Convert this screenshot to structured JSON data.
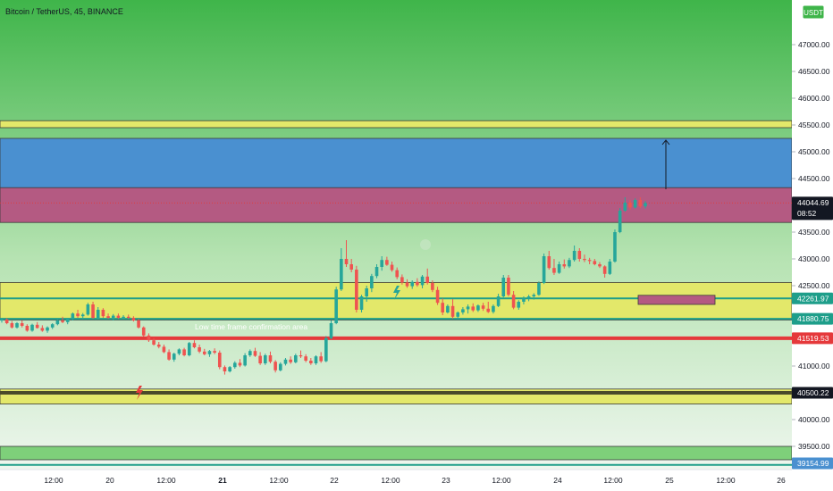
{
  "header": {
    "title": "Bitcoin / TetherUS, 45, BINANCE",
    "currency": "USDT"
  },
  "colors": {
    "bg_top": "#3fb54a",
    "bg_bottom": "#eef6ee",
    "yellow_zone": "#e3e86a",
    "blue_zone": "#4a90d0",
    "pink_zone": "#b45a82",
    "green_zone": "#7ed07a",
    "teal_line": "#1e9e8a",
    "red_line": "#e5393b",
    "dark_line": "#4a4a2a",
    "candle_up": "#26a69a",
    "candle_down": "#ef5350"
  },
  "chart_data": {
    "type": "candlestick",
    "symbol": "BTCUSDT",
    "timeframe": "45",
    "ylim": [
      39050,
      47550
    ],
    "x_ticks": [
      "12:00",
      "20",
      "12:00",
      "21",
      "12:00",
      "22",
      "12:00",
      "23",
      "12:00",
      "24",
      "12:00",
      "25",
      "12:00",
      "26"
    ],
    "y_ticks": [
      "47000.00",
      "46500.00",
      "46000.00",
      "45500.00",
      "45000.00",
      "44500.00",
      "43500.00",
      "43000.00",
      "42500.00",
      "41000.00",
      "40000.00",
      "39500.00"
    ],
    "zones": [
      {
        "kind": "yellow",
        "low": 45450,
        "high": 45580
      },
      {
        "kind": "blue",
        "low": 44300,
        "high": 45250
      },
      {
        "kind": "pink",
        "low": 43680,
        "high": 44330
      },
      {
        "kind": "yellow",
        "low": 41860,
        "high": 42560
      },
      {
        "kind": "yellow",
        "low": 40290,
        "high": 40570
      },
      {
        "kind": "green",
        "low": 39250,
        "high": 39500
      }
    ],
    "lines": [
      {
        "kind": "teal",
        "price": 42261.97
      },
      {
        "kind": "teal",
        "price": 41880.75
      },
      {
        "kind": "red",
        "price": 41519.53
      },
      {
        "kind": "dark",
        "price": 40500.22
      },
      {
        "kind": "teal",
        "price": 39154.99
      }
    ],
    "price_labels": [
      {
        "value": "44044.69",
        "sub": "08:52",
        "kind": "current"
      },
      {
        "value": "42261.97",
        "kind": "teal"
      },
      {
        "value": "41880.75",
        "kind": "teal"
      },
      {
        "value": "41519.53",
        "kind": "red"
      },
      {
        "value": "40500.22",
        "kind": "dark"
      },
      {
        "value": "39154.99",
        "kind": "blue"
      }
    ],
    "annotation": "Low time frame confirmation area",
    "current_price": 44044.69,
    "arrow_target": 45250,
    "target_box": {
      "low": 42150,
      "high": 42320
    },
    "candles": [
      [
        41850,
        41900,
        41810,
        41870
      ],
      [
        41870,
        41890,
        41780,
        41800
      ],
      [
        41800,
        41840,
        41700,
        41720
      ],
      [
        41720,
        41820,
        41700,
        41800
      ],
      [
        41800,
        41850,
        41720,
        41750
      ],
      [
        41750,
        41780,
        41640,
        41660
      ],
      [
        41660,
        41790,
        41640,
        41770
      ],
      [
        41770,
        41820,
        41700,
        41710
      ],
      [
        41710,
        41760,
        41640,
        41660
      ],
      [
        41660,
        41740,
        41620,
        41720
      ],
      [
        41720,
        41800,
        41690,
        41780
      ],
      [
        41780,
        41870,
        41760,
        41850
      ],
      [
        41850,
        41920,
        41800,
        41820
      ],
      [
        41820,
        41900,
        41780,
        41880
      ],
      [
        41880,
        42000,
        41850,
        41980
      ],
      [
        41980,
        42050,
        41900,
        41930
      ],
      [
        41930,
        41990,
        41870,
        41960
      ],
      [
        41960,
        42180,
        41940,
        42150
      ],
      [
        42150,
        42200,
        41880,
        41900
      ],
      [
        41900,
        42100,
        41870,
        42050
      ],
      [
        42050,
        42080,
        41900,
        41930
      ],
      [
        41930,
        41980,
        41880,
        41900
      ],
      [
        41900,
        41970,
        41850,
        41940
      ],
      [
        41940,
        41980,
        41880,
        41900
      ],
      [
        41900,
        41950,
        41870,
        41920
      ],
      [
        41920,
        41960,
        41880,
        41900
      ],
      [
        41900,
        41930,
        41830,
        41850
      ],
      [
        41850,
        41880,
        41700,
        41720
      ],
      [
        41720,
        41740,
        41550,
        41570
      ],
      [
        41570,
        41610,
        41450,
        41480
      ],
      [
        41480,
        41520,
        41380,
        41400
      ],
      [
        41400,
        41450,
        41330,
        41360
      ],
      [
        41360,
        41400,
        41240,
        41260
      ],
      [
        41260,
        41310,
        41100,
        41120
      ],
      [
        41120,
        41250,
        41080,
        41230
      ],
      [
        41230,
        41330,
        41200,
        41310
      ],
      [
        41310,
        41340,
        41180,
        41200
      ],
      [
        41200,
        41450,
        41180,
        41430
      ],
      [
        41430,
        41480,
        41330,
        41350
      ],
      [
        41350,
        41400,
        41240,
        41270
      ],
      [
        41270,
        41320,
        41200,
        41220
      ],
      [
        41220,
        41300,
        41170,
        41280
      ],
      [
        41280,
        41330,
        41220,
        41250
      ],
      [
        41250,
        41290,
        40940,
        40980
      ],
      [
        40980,
        41010,
        40840,
        40900
      ],
      [
        40900,
        41000,
        40880,
        40980
      ],
      [
        40980,
        41090,
        40950,
        41060
      ],
      [
        41060,
        41130,
        40980,
        41010
      ],
      [
        41010,
        41240,
        40990,
        41200
      ],
      [
        41200,
        41310,
        41170,
        41280
      ],
      [
        41280,
        41340,
        41170,
        41190
      ],
      [
        41190,
        41260,
        41020,
        41050
      ],
      [
        41050,
        41230,
        41020,
        41200
      ],
      [
        41200,
        41270,
        41050,
        41080
      ],
      [
        41080,
        41110,
        40880,
        40920
      ],
      [
        40920,
        41070,
        40900,
        41040
      ],
      [
        41040,
        41150,
        41010,
        41120
      ],
      [
        41120,
        41180,
        41040,
        41070
      ],
      [
        41070,
        41230,
        41050,
        41200
      ],
      [
        41200,
        41290,
        41150,
        41180
      ],
      [
        41180,
        41220,
        41070,
        41100
      ],
      [
        41100,
        41150,
        41020,
        41050
      ],
      [
        41050,
        41200,
        41020,
        41180
      ],
      [
        41180,
        41260,
        41060,
        41090
      ],
      [
        41090,
        41560,
        41070,
        41520
      ],
      [
        41520,
        41850,
        41500,
        41800
      ],
      [
        41800,
        42480,
        41780,
        42430
      ],
      [
        42430,
        43200,
        42400,
        43000
      ],
      [
        43000,
        43350,
        42850,
        42900
      ],
      [
        42900,
        43000,
        42750,
        42800
      ],
      [
        42800,
        42870,
        42000,
        42050
      ],
      [
        42050,
        42330,
        42000,
        42300
      ],
      [
        42300,
        42500,
        42200,
        42450
      ],
      [
        42450,
        42720,
        42380,
        42680
      ],
      [
        42680,
        42900,
        42640,
        42850
      ],
      [
        42850,
        43050,
        42780,
        42980
      ],
      [
        42980,
        43040,
        42870,
        42890
      ],
      [
        42890,
        42950,
        42760,
        42790
      ],
      [
        42790,
        42840,
        42620,
        42660
      ],
      [
        42660,
        42710,
        42520,
        42560
      ],
      [
        42560,
        42620,
        42460,
        42490
      ],
      [
        42490,
        42600,
        42440,
        42570
      ],
      [
        42570,
        42640,
        42480,
        42510
      ],
      [
        42510,
        42700,
        42450,
        42670
      ],
      [
        42670,
        42820,
        42520,
        42550
      ],
      [
        42550,
        42600,
        42380,
        42420
      ],
      [
        42420,
        42480,
        42140,
        42180
      ],
      [
        42180,
        42260,
        41950,
        42000
      ],
      [
        42000,
        42150,
        41980,
        42120
      ],
      [
        42120,
        42250,
        41880,
        41920
      ],
      [
        41920,
        42020,
        41870,
        42000
      ],
      [
        42000,
        42100,
        41960,
        42060
      ],
      [
        42060,
        42150,
        41980,
        42110
      ],
      [
        42110,
        42170,
        42010,
        42040
      ],
      [
        42040,
        42150,
        42010,
        42130
      ],
      [
        42130,
        42180,
        42030,
        42070
      ],
      [
        42070,
        42200,
        41990,
        42010
      ],
      [
        42010,
        42150,
        41980,
        42120
      ],
      [
        42120,
        42350,
        42100,
        42300
      ],
      [
        42300,
        42700,
        42280,
        42650
      ],
      [
        42650,
        42700,
        42300,
        42330
      ],
      [
        42330,
        42400,
        42060,
        42090
      ],
      [
        42090,
        42230,
        42050,
        42200
      ],
      [
        42200,
        42300,
        42150,
        42260
      ],
      [
        42260,
        42330,
        42210,
        42300
      ],
      [
        42300,
        42360,
        42240,
        42330
      ],
      [
        42330,
        42580,
        42310,
        42550
      ],
      [
        42550,
        43100,
        42530,
        43050
      ],
      [
        43050,
        43150,
        42800,
        42830
      ],
      [
        42830,
        43000,
        42700,
        42740
      ],
      [
        42740,
        42950,
        42720,
        42900
      ],
      [
        42900,
        42990,
        42820,
        42860
      ],
      [
        42860,
        43020,
        42830,
        42980
      ],
      [
        42980,
        43250,
        42950,
        43150
      ],
      [
        43150,
        43200,
        42950,
        43000
      ],
      [
        43000,
        43080,
        42940,
        42980
      ],
      [
        42980,
        43020,
        42900,
        42960
      ],
      [
        42960,
        43000,
        42880,
        42900
      ],
      [
        42900,
        42940,
        42830,
        42860
      ],
      [
        42860,
        42880,
        42650,
        42720
      ],
      [
        42720,
        43000,
        42700,
        42950
      ],
      [
        42950,
        43550,
        42930,
        43500
      ],
      [
        43500,
        43950,
        43480,
        43900
      ],
      [
        43900,
        44150,
        43880,
        44050
      ],
      [
        44050,
        44100,
        43920,
        43960
      ],
      [
        43960,
        44130,
        43940,
        44100
      ],
      [
        44100,
        44150,
        43950,
        43980
      ],
      [
        43980,
        44080,
        43940,
        44045
      ]
    ]
  }
}
